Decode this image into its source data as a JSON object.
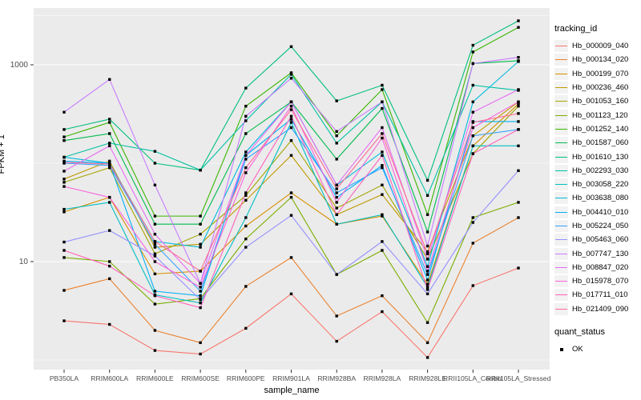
{
  "figure": {
    "bg": "#FFFFFF",
    "panel_bg": "#EBEBEB",
    "grid_color": "#FFFFFF",
    "tick_color": "#333333",
    "tick_label_color": "#4D4D4D"
  },
  "chart_data": {
    "type": "line",
    "title": "",
    "xlabel": "sample_name",
    "ylabel": "FPKM + 1",
    "y_scale": "log10",
    "legend_position": "right",
    "grid": "on",
    "y_ticks": [
      {
        "label": "10",
        "value": 10
      },
      {
        "label": "1000",
        "value": 1000
      }
    ],
    "y_minor_breaks": [
      1,
      100,
      3162
    ],
    "x_categories": [
      "PB350LA",
      "RRIM600LA",
      "RRIM600LE",
      "RRIM600SE",
      "RRIM600PE",
      "RRIM901LA",
      "RRIM928BA",
      "RRIM928LA",
      "RRIM928LE",
      "RRII105LA_Control",
      "RRII105LA_Stressed"
    ],
    "series": [
      {
        "name": "Hb_000009_040",
        "color": "#F8766D",
        "values": [
          2.5,
          2.3,
          1.25,
          1.15,
          2.1,
          4.7,
          1.55,
          3.1,
          1.06,
          5.7,
          8.6
        ]
      },
      {
        "name": "Hb_000134_020",
        "color": "#EA8331",
        "values": [
          5.1,
          6.7,
          2.0,
          1.5,
          5.6,
          11,
          2.8,
          4.5,
          1.5,
          15.4,
          28
        ]
      },
      {
        "name": "Hb_000199_070",
        "color": "#D89000",
        "values": [
          32,
          45,
          7.5,
          8,
          23,
          50,
          24,
          29,
          5.9,
          150,
          400
        ]
      },
      {
        "name": "Hb_000236_460",
        "color": "#C09B00",
        "values": [
          69,
          105,
          14,
          15,
          42,
          120,
          30,
          48,
          12.6,
          190,
          420
        ]
      },
      {
        "name": "Hb_001053_160",
        "color": "#A3A500",
        "values": [
          64,
          90,
          12,
          19,
          47,
          170,
          35,
          60,
          10.6,
          125,
          380
        ]
      },
      {
        "name": "Hb_001123_120",
        "color": "#7CAE00",
        "values": [
          11,
          10,
          3.7,
          4.2,
          17,
          45,
          7.4,
          13,
          2.4,
          28,
          40
        ]
      },
      {
        "name": "Hb_001252_140",
        "color": "#39B600",
        "values": [
          185,
          260,
          29,
          29,
          380,
          830,
          190,
          560,
          30,
          1350,
          2400
        ]
      },
      {
        "name": "Hb_001587_060",
        "color": "#00BB4E",
        "values": [
          170,
          200,
          24,
          24,
          200,
          420,
          110,
          360,
          20,
          1030,
          1100
        ]
      },
      {
        "name": "Hb_001610_130",
        "color": "#00BF7D",
        "values": [
          220,
          280,
          100,
          85,
          580,
          1530,
          430,
          620,
          67,
          1580,
          2800
        ]
      },
      {
        "name": "Hb_002293_030",
        "color": "#00C1A3",
        "values": [
          115,
          160,
          132,
          85,
          270,
          800,
          160,
          420,
          47,
          620,
          550
        ]
      },
      {
        "name": "Hb_003058_220",
        "color": "#00BFC4",
        "values": [
          34,
          40,
          4.6,
          3.8,
          28,
          260,
          24,
          30,
          5.5,
          150,
          150
        ]
      },
      {
        "name": "Hb_003638_080",
        "color": "#00BBDA",
        "values": [
          115,
          100,
          16,
          14,
          130,
          420,
          60,
          130,
          8.9,
          420,
          1080
        ]
      },
      {
        "name": "Hb_004410_010",
        "color": "#00B0F6",
        "values": [
          105,
          100,
          5,
          4.5,
          120,
          280,
          45,
          95,
          6.5,
          265,
          265
        ]
      },
      {
        "name": "Hb_005224_050",
        "color": "#35A2FF",
        "values": [
          100,
          95,
          15,
          5,
          110,
          230,
          50,
          90,
          7.4,
          190,
          220
        ]
      },
      {
        "name": "Hb_005463_060",
        "color": "#9590FF",
        "values": [
          15.8,
          20.7,
          11.4,
          4.1,
          14,
          29.5,
          7.4,
          16,
          4.7,
          25,
          84
        ]
      },
      {
        "name": "Hb_007747_130",
        "color": "#C77CFF",
        "values": [
          330,
          710,
          60,
          6,
          300,
          730,
          210,
          420,
          14.4,
          1030,
          1190
        ]
      },
      {
        "name": "Hb_008847_020",
        "color": "#E76BF3",
        "values": [
          83,
          150,
          19,
          6,
          120,
          420,
          60,
          230,
          10.6,
          330,
          560
        ]
      },
      {
        "name": "Hb_015978_070",
        "color": "#FA62DB",
        "values": [
          58,
          45,
          10,
          5.5,
          80,
          380,
          40,
          180,
          8,
          230,
          420
        ]
      },
      {
        "name": "Hb_017711_010",
        "color": "#FF62BC",
        "values": [
          13,
          9,
          4.5,
          3.4,
          50,
          300,
          30,
          120,
          5.2,
          125,
          220
        ]
      },
      {
        "name": "Hb_021409_090",
        "color": "#FF6A98",
        "values": [
          102,
          98,
          16,
          8,
          90,
          350,
          55,
          200,
          12,
          260,
          320
        ]
      }
    ]
  },
  "legend": {
    "tracking_title": "tracking_id",
    "quant_title": "quant_status",
    "quant_items": [
      {
        "label": "OK"
      }
    ]
  }
}
